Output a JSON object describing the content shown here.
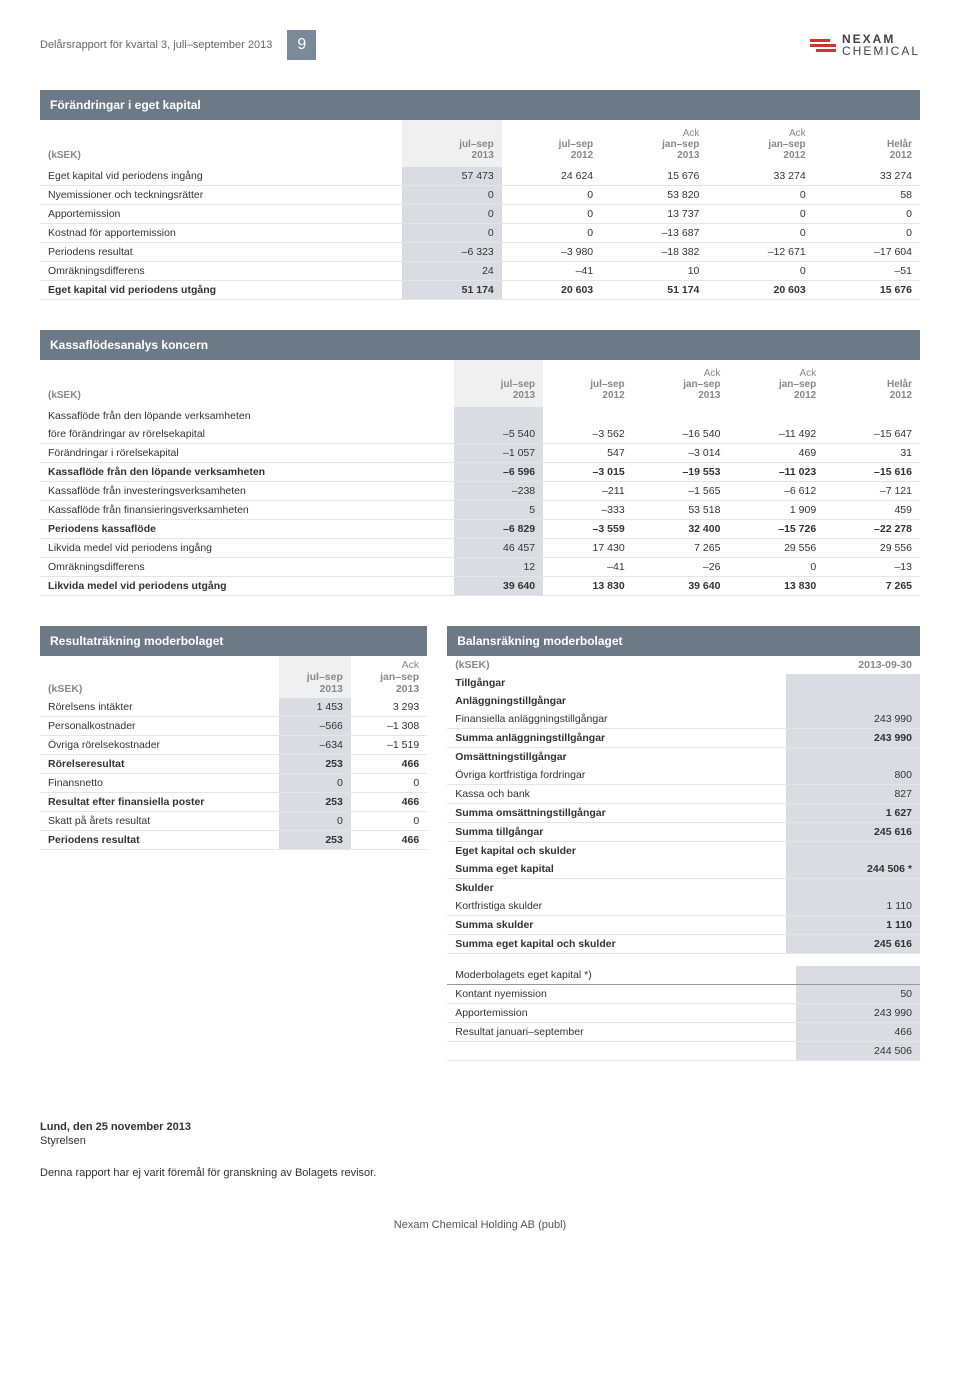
{
  "header": {
    "title": "Delårsrapport för kvartal 3, juli–september 2013",
    "page_num": "9",
    "logo_top": "NEXAM",
    "logo_bottom": "CHEMICAL"
  },
  "colors": {
    "header_bar": "#6c7a87",
    "highlight_col": "#d9dde1",
    "text_muted": "#888",
    "logo_red": "#c33"
  },
  "table1": {
    "title": "Förändringar i eget kapital",
    "ksek": "(kSEK)",
    "cols": [
      "jul–sep\n2013",
      "jul–sep\n2012",
      "Ack\njan–sep\n2013",
      "Ack\njan–sep\n2012",
      "Helår\n2012"
    ],
    "rows": [
      {
        "label": "Eget kapital vid periodens ingång",
        "v": [
          "57 473",
          "24 624",
          "15 676",
          "33 274",
          "33 274"
        ]
      },
      {
        "label": "Nyemissioner och teckningsrätter",
        "v": [
          "0",
          "0",
          "53 820",
          "0",
          "58"
        ]
      },
      {
        "label": "Apportemission",
        "v": [
          "0",
          "0",
          "13 737",
          "0",
          "0"
        ]
      },
      {
        "label": "Kostnad för apportemission",
        "v": [
          "0",
          "0",
          "–13 687",
          "0",
          "0"
        ]
      },
      {
        "label": "Periodens resultat",
        "v": [
          "–6 323",
          "–3 980",
          "–18 382",
          "–12 671",
          "–17 604"
        ]
      },
      {
        "label": "Omräkningsdifferens",
        "v": [
          "24",
          "–41",
          "10",
          "0",
          "–51"
        ]
      }
    ],
    "total": {
      "label": "Eget kapital vid periodens utgång",
      "v": [
        "51 174",
        "20 603",
        "51 174",
        "20 603",
        "15 676"
      ]
    }
  },
  "table2": {
    "title": "Kassaflödesanalys koncern",
    "ksek": "(kSEK)",
    "cols": [
      "jul–sep\n2013",
      "jul–sep\n2012",
      "Ack\njan–sep\n2013",
      "Ack\njan–sep\n2012",
      "Helår\n2012"
    ],
    "sections": [
      {
        "rows": [
          {
            "label": "Kassaflöde från den löpande verksamheten",
            "noline": true
          },
          {
            "label": "före förändringar av rörelsekapital",
            "v": [
              "–5 540",
              "–3 562",
              "–16 540",
              "–11 492",
              "–15 647"
            ]
          },
          {
            "label": "Förändringar i rörelsekapital",
            "v": [
              "–1 057",
              "547",
              "–3 014",
              "469",
              "31"
            ]
          }
        ]
      },
      {
        "bold": true,
        "rows": [
          {
            "label": "Kassaflöde från den löpande verksamheten",
            "v": [
              "–6 596",
              "–3 015",
              "–19 553",
              "–11 023",
              "–15 616"
            ]
          }
        ]
      },
      {
        "rows": [
          {
            "label": "Kassaflöde från investeringsverksamheten",
            "v": [
              "–238",
              "–211",
              "–1 565",
              "–6 612",
              "–7 121"
            ]
          },
          {
            "label": "Kassaflöde från finansieringsverksamheten",
            "v": [
              "5",
              "–333",
              "53 518",
              "1 909",
              "459"
            ]
          }
        ]
      },
      {
        "bold": true,
        "rows": [
          {
            "label": "Periodens kassaflöde",
            "v": [
              "–6 829",
              "–3 559",
              "32 400",
              "–15 726",
              "–22 278"
            ]
          }
        ]
      },
      {
        "rows": [
          {
            "label": "Likvida medel vid periodens ingång",
            "v": [
              "46 457",
              "17 430",
              "7 265",
              "29 556",
              "29 556"
            ]
          },
          {
            "label": "Omräkningsdifferens",
            "v": [
              "12",
              "–41",
              "–26",
              "0",
              "–13"
            ]
          }
        ]
      },
      {
        "bold": true,
        "rows": [
          {
            "label": "Likvida medel vid periodens utgång",
            "v": [
              "39 640",
              "13 830",
              "39 640",
              "13 830",
              "7 265"
            ]
          }
        ]
      }
    ]
  },
  "table3": {
    "title": "Resultaträkning moderbolaget",
    "ksek": "(kSEK)",
    "cols": [
      "jul–sep\n2013",
      "Ack\njan–sep\n2013"
    ],
    "rows": [
      {
        "label": "Rörelsens intäkter",
        "v": [
          "1 453",
          "3 293"
        ]
      },
      {
        "label": "Personalkostnader",
        "v": [
          "–566",
          "–1 308"
        ]
      },
      {
        "label": "Övriga rörelsekostnader",
        "v": [
          "–634",
          "–1 519"
        ]
      },
      {
        "label": "Rörelseresultat",
        "v": [
          "253",
          "466"
        ],
        "bold": true
      },
      {
        "label": "Finansnetto",
        "v": [
          "0",
          "0"
        ]
      },
      {
        "label": "Resultat efter finansiella poster",
        "v": [
          "253",
          "466"
        ],
        "bold": true
      },
      {
        "label": "Skatt på årets resultat",
        "v": [
          "0",
          "0"
        ]
      },
      {
        "label": "Periodens resultat",
        "v": [
          "253",
          "466"
        ],
        "bold": true
      }
    ]
  },
  "table4": {
    "title": "Balansräkning moderbolaget",
    "ksek": "(kSEK)",
    "date": "2013-09-30",
    "rows": [
      {
        "label": "Tillgångar",
        "section": true
      },
      {
        "label": "Anläggningstillgångar",
        "section": true
      },
      {
        "label": "Finansiella anläggningstillgångar",
        "v": "243 990"
      },
      {
        "label": "Summa anläggningstillgångar",
        "v": "243 990",
        "bold": true
      },
      {
        "label": "Omsättningstillgångar",
        "section": true
      },
      {
        "label": "Övriga kortfristiga fordringar",
        "v": "800"
      },
      {
        "label": "Kassa och bank",
        "v": "827"
      },
      {
        "label": "Summa omsättningstillgångar",
        "v": "1 627",
        "bold": true
      },
      {
        "label": "Summa tillgångar",
        "v": "245 616",
        "bold": true
      },
      {
        "label": "Eget kapital och skulder",
        "section": true
      },
      {
        "label": "Summa eget kapital",
        "v": "244 506 *",
        "bold": true
      },
      {
        "label": "Skulder",
        "section": true
      },
      {
        "label": "Kortfristiga skulder",
        "v": "1 110"
      },
      {
        "label": "Summa skulder",
        "v": "1 110",
        "bold": true
      },
      {
        "label": "Summa eget kapital och skulder",
        "v": "245 616",
        "bold": true
      }
    ],
    "footnote_rows": [
      {
        "label": "Moderbolagets eget kapital *)"
      },
      {
        "label": "Kontant nyemission",
        "v": "50"
      },
      {
        "label": "Apportemission",
        "v": "243 990"
      },
      {
        "label": "Resultat januari–september",
        "v": "466"
      },
      {
        "label": "",
        "v": "244 506"
      }
    ]
  },
  "footer": {
    "line1": "Lund, den 25 november 2013",
    "line2": "Styrelsen",
    "note": "Denna rapport har ej varit föremål för granskning av Bolagets revisor.",
    "company": "Nexam Chemical Holding AB (publ)"
  }
}
